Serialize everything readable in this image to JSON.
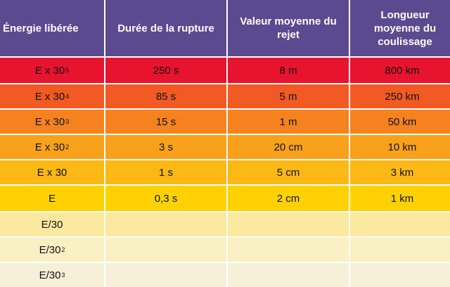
{
  "headers": [
    "Énergie libérée",
    "Durée de la rupture",
    "Valeur moyenne du rejet",
    "Longueur moyenne du coulissage"
  ],
  "rows": [
    {
      "energy_base": "E x 30",
      "energy_exp": "5",
      "duree": "250 s",
      "rejet": "8 m",
      "coulissage": "800 km",
      "color": "#e8132e"
    },
    {
      "energy_base": "E x 30",
      "energy_exp": "4",
      "duree": "85 s",
      "rejet": "5 m",
      "coulissage": "250 km",
      "color": "#f15a22"
    },
    {
      "energy_base": "E x 30",
      "energy_exp": "3",
      "duree": "15 s",
      "rejet": "1 m",
      "coulissage": "50 km",
      "color": "#f5821f"
    },
    {
      "energy_base": "E x 30",
      "energy_exp": "2",
      "duree": "3 s",
      "rejet": "20 cm",
      "coulissage": "10 km",
      "color": "#f9a11b"
    },
    {
      "energy_base": "E x 30",
      "energy_exp": "",
      "duree": "1 s",
      "rejet": "5 cm",
      "coulissage": "3 km",
      "color": "#fcb814"
    },
    {
      "energy_base": "E",
      "energy_exp": "",
      "duree": "0,3 s",
      "rejet": "2 cm",
      "coulissage": "1 km",
      "color": "#ffd200"
    },
    {
      "energy_base": "E/30",
      "energy_exp": "",
      "duree": "",
      "rejet": "",
      "coulissage": "",
      "color": "#fce9a0"
    },
    {
      "energy_base": "E/30",
      "energy_exp": "2",
      "duree": "",
      "rejet": "",
      "coulissage": "",
      "color": "#fbf0c4"
    },
    {
      "energy_base": "E/30",
      "energy_exp": "3",
      "duree": "",
      "rejet": "",
      "coulissage": "",
      "color": "#f7f0d9"
    }
  ]
}
